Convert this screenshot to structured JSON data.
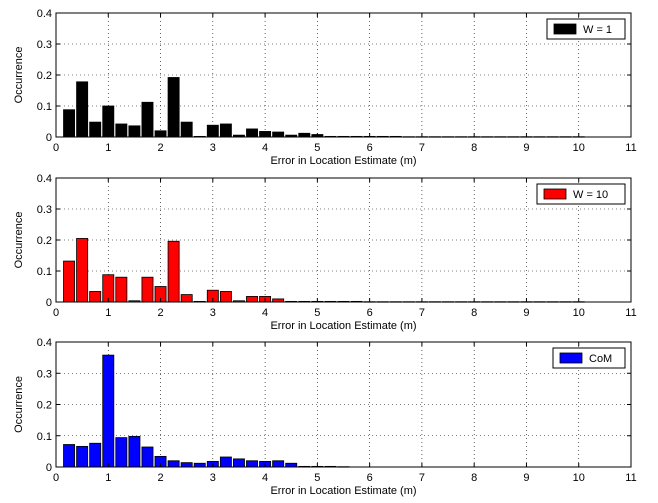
{
  "chart_data": [
    {
      "type": "bar",
      "legend": "W = 1",
      "color": "#000000",
      "xlabel": "Error in Location Estimate (m)",
      "ylabel": "Occurrence",
      "xlim": [
        0,
        11
      ],
      "ylim": [
        0,
        0.4
      ],
      "xticks": [
        0,
        1,
        2,
        3,
        4,
        5,
        6,
        7,
        8,
        9,
        10,
        11
      ],
      "yticks": [
        0,
        0.1,
        0.2,
        0.3,
        0.4
      ],
      "grid": true,
      "legend_position": "top-right",
      "bin_width": 0.25,
      "x": [
        0.25,
        0.5,
        0.75,
        1.0,
        1.25,
        1.5,
        1.75,
        2.0,
        2.25,
        2.5,
        2.75,
        3.0,
        3.25,
        3.5,
        3.75,
        4.0,
        4.25,
        4.5,
        4.75,
        5.0,
        5.25,
        5.5,
        5.75,
        6.0,
        6.25,
        6.5,
        6.75,
        7.0,
        7.25,
        7.5,
        7.75,
        8.0,
        8.25,
        8.5,
        8.75,
        9.0,
        9.25,
        9.5,
        9.75,
        10.0
      ],
      "values": [
        0.088,
        0.178,
        0.048,
        0.1,
        0.042,
        0.036,
        0.112,
        0.02,
        0.192,
        0.048,
        0.002,
        0.038,
        0.042,
        0.006,
        0.026,
        0.018,
        0.016,
        0.006,
        0.012,
        0.008,
        0.002,
        0.002,
        0.002,
        0.002,
        0.002,
        0.002,
        0.001,
        0.001,
        0.001,
        0.001,
        0.001,
        0.001,
        0.001,
        0.001,
        0.001,
        0.001,
        0.001,
        0.001,
        0.001,
        0.001
      ]
    },
    {
      "type": "bar",
      "legend": "W = 10",
      "color": "#ff0000",
      "xlabel": "Error in Location Estimate (m)",
      "ylabel": "Occurrence",
      "xlim": [
        0,
        11
      ],
      "ylim": [
        0,
        0.4
      ],
      "xticks": [
        0,
        1,
        2,
        3,
        4,
        5,
        6,
        7,
        8,
        9,
        10,
        11
      ],
      "yticks": [
        0,
        0.1,
        0.2,
        0.3,
        0.4
      ],
      "grid": true,
      "legend_position": "top-right",
      "bin_width": 0.25,
      "x": [
        0.25,
        0.5,
        0.75,
        1.0,
        1.25,
        1.5,
        1.75,
        2.0,
        2.25,
        2.5,
        2.75,
        3.0,
        3.25,
        3.5,
        3.75,
        4.0,
        4.25,
        4.5,
        4.75,
        5.0,
        5.25,
        5.5,
        5.75,
        6.0,
        6.25,
        6.5,
        6.75,
        7.0,
        7.25,
        7.5,
        7.75,
        8.0,
        8.25,
        8.5,
        8.75,
        9.0,
        9.25,
        9.5,
        9.75,
        10.0
      ],
      "values": [
        0.132,
        0.205,
        0.034,
        0.088,
        0.08,
        0.004,
        0.08,
        0.05,
        0.196,
        0.024,
        0.002,
        0.038,
        0.034,
        0.004,
        0.018,
        0.018,
        0.01,
        0.002,
        0.002,
        0.002,
        0.002,
        0.002,
        0.002,
        0.001,
        0.001,
        0.001,
        0.001,
        0.001,
        0.001,
        0.001,
        0.001,
        0.001,
        0.001,
        0.001,
        0.001,
        0.001,
        0.001,
        0.001,
        0.001,
        0.001
      ]
    },
    {
      "type": "bar",
      "legend": "CoM",
      "color": "#0000ff",
      "xlabel": "Error in Location Estimate (m)",
      "ylabel": "Occurrence",
      "xlim": [
        0,
        11
      ],
      "ylim": [
        0,
        0.4
      ],
      "xticks": [
        0,
        1,
        2,
        3,
        4,
        5,
        6,
        7,
        8,
        9,
        10,
        11
      ],
      "yticks": [
        0,
        0.1,
        0.2,
        0.3,
        0.4
      ],
      "grid": true,
      "legend_position": "top-right",
      "bin_width": 0.25,
      "x": [
        0.25,
        0.5,
        0.75,
        1.0,
        1.25,
        1.5,
        1.75,
        2.0,
        2.25,
        2.5,
        2.75,
        3.0,
        3.25,
        3.5,
        3.75,
        4.0,
        4.25,
        4.5,
        4.75,
        5.0,
        5.25,
        5.5
      ],
      "values": [
        0.072,
        0.066,
        0.076,
        0.358,
        0.094,
        0.098,
        0.064,
        0.034,
        0.02,
        0.014,
        0.012,
        0.018,
        0.032,
        0.026,
        0.02,
        0.018,
        0.02,
        0.012,
        0.002,
        0.002,
        0.002,
        0.001
      ]
    }
  ]
}
